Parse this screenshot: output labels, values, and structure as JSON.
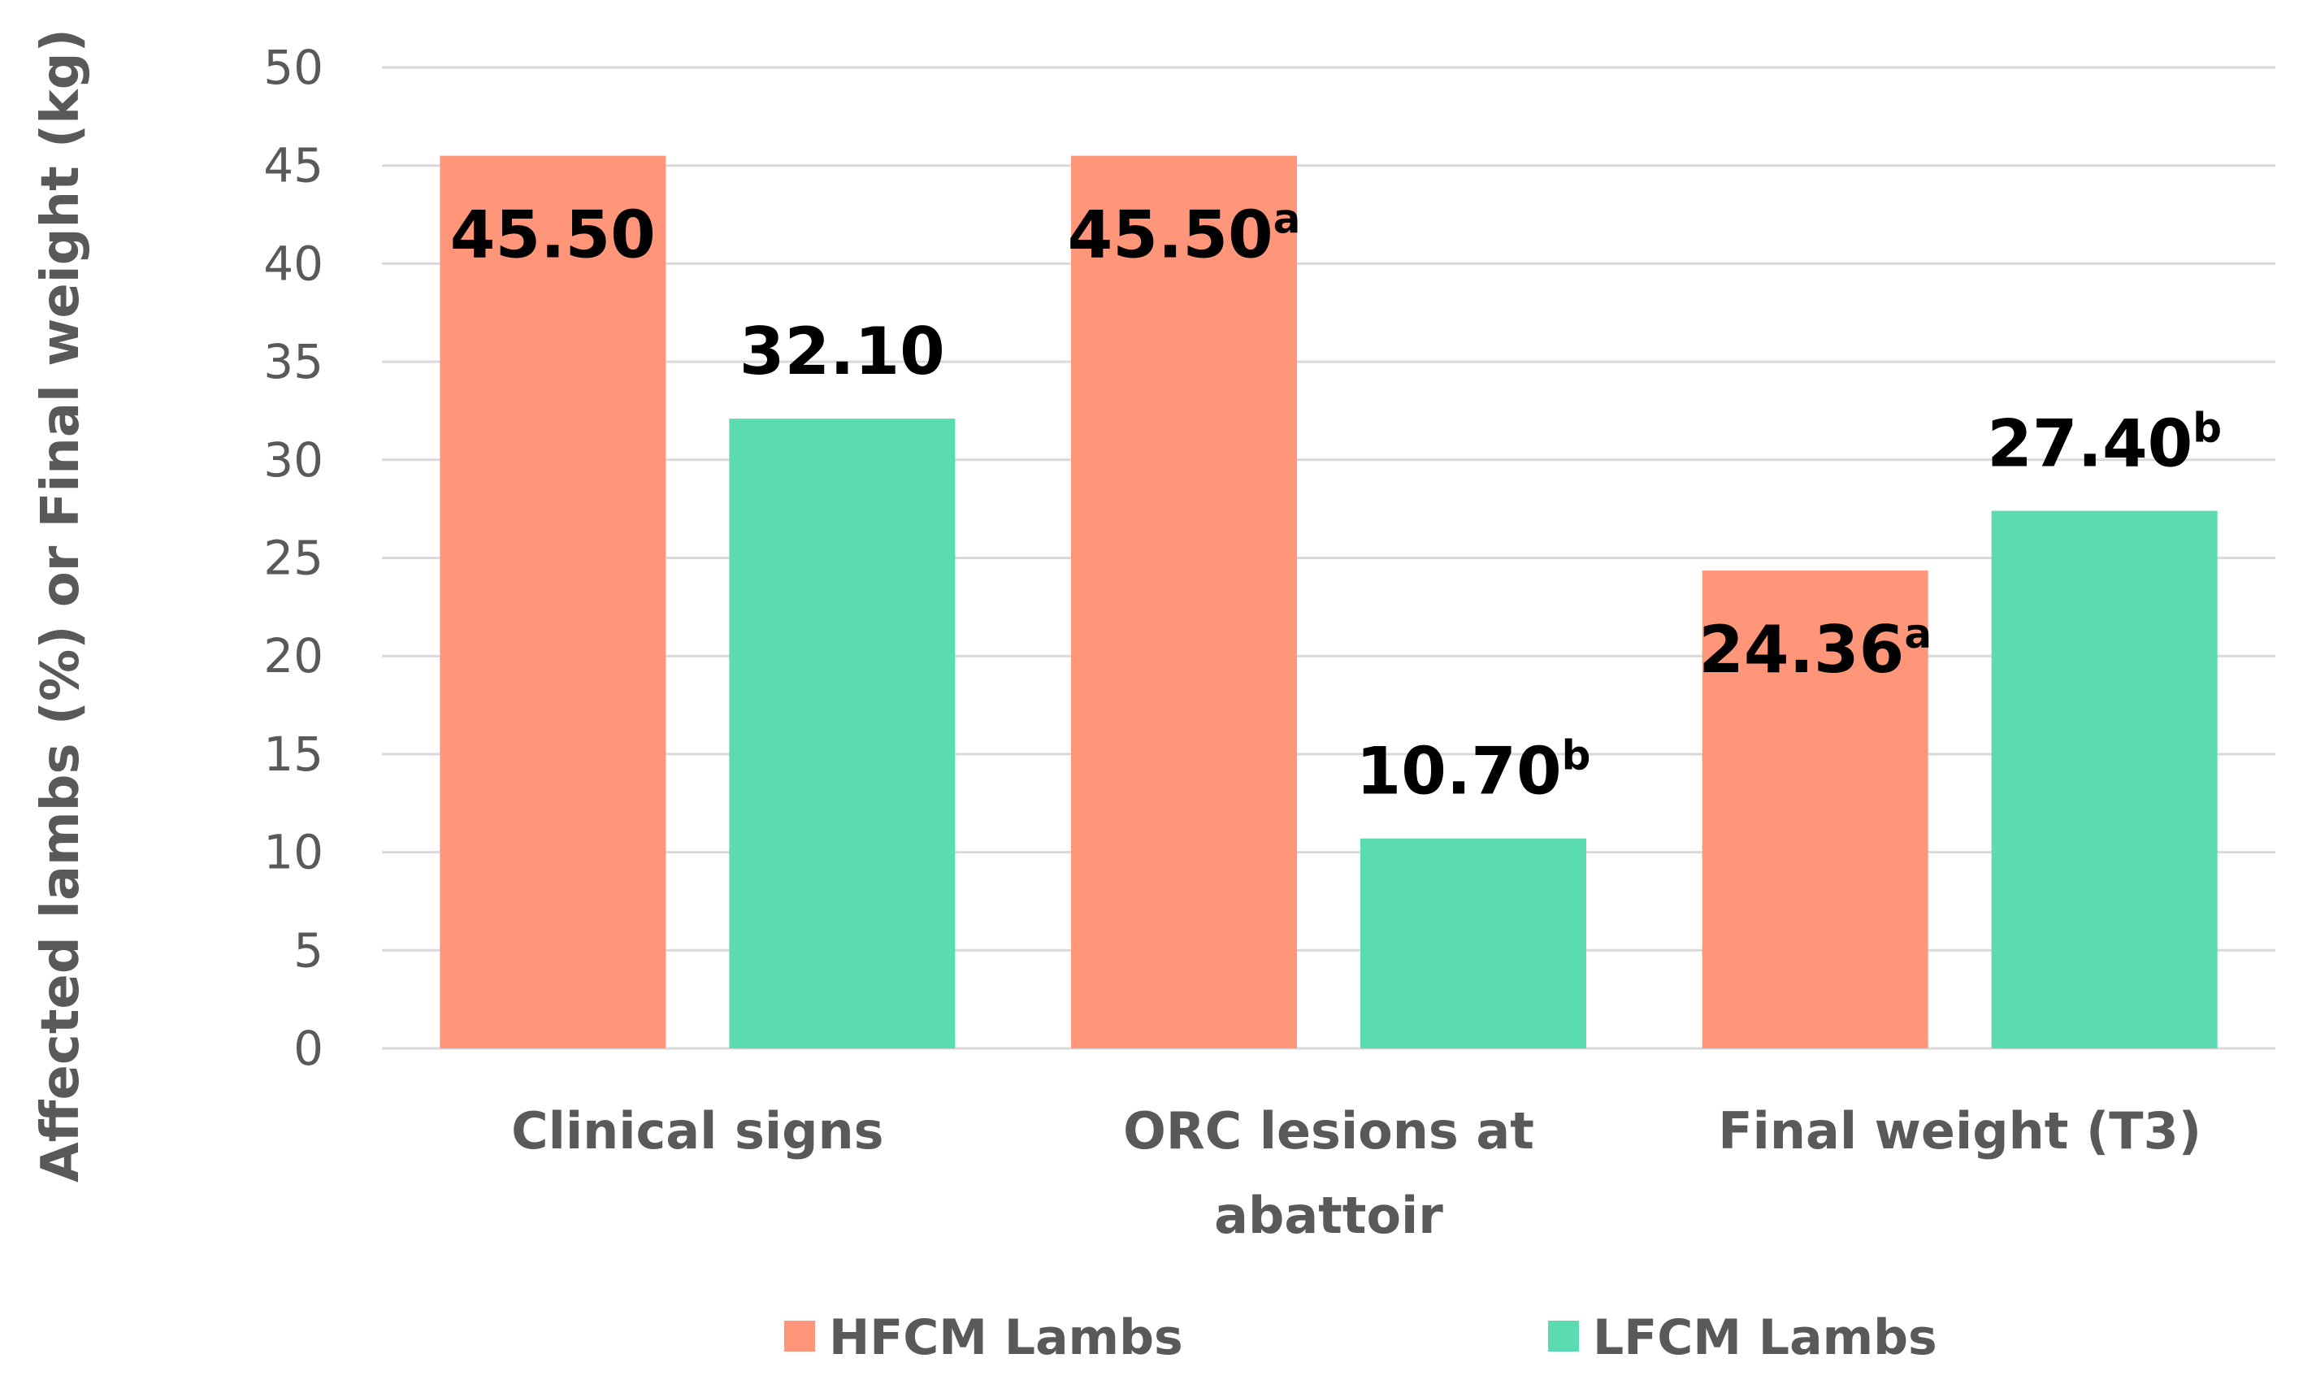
{
  "chart_data": {
    "type": "bar",
    "title": "",
    "xlabel": "",
    "ylabel": "Affected lambs (%) or Final weight (kg)",
    "ylim": [
      0,
      50
    ],
    "yticks": [
      0,
      5,
      10,
      15,
      20,
      25,
      30,
      35,
      40,
      45,
      50
    ],
    "grid": true,
    "legend_position": "bottom",
    "categories": [
      [
        "Clinical signs"
      ],
      [
        "ORC lesions at",
        "abattoir"
      ],
      [
        "Final weight (T3)"
      ]
    ],
    "series": [
      {
        "name": "HFCM Lambs",
        "color": "#FF967A",
        "values": [
          45.5,
          45.5,
          24.36
        ],
        "labels": [
          "45.50",
          "45.50",
          "24.36"
        ],
        "superscripts": [
          "",
          "a",
          "a"
        ]
      },
      {
        "name": "LFCM Lambs",
        "color": "#5ADBB2",
        "values": [
          32.1,
          10.7,
          27.4
        ],
        "labels": [
          "32.10",
          "10.70",
          "27.40"
        ],
        "superscripts": [
          "",
          "b",
          "b"
        ]
      }
    ]
  }
}
